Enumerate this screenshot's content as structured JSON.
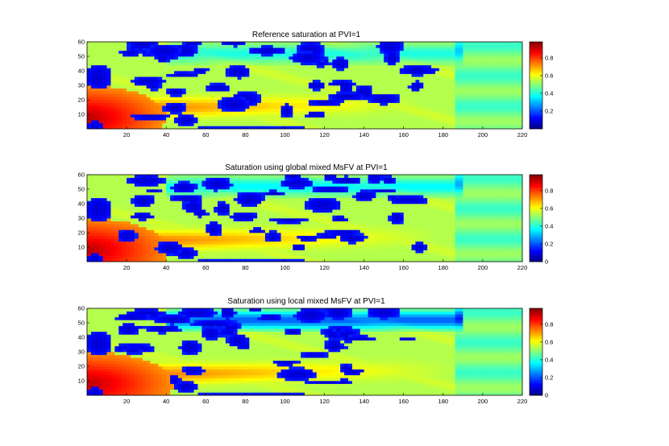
{
  "chart_data": [
    {
      "type": "heatmap",
      "title": "Reference saturation at PVI=1",
      "xlim": [
        0,
        220
      ],
      "ylim": [
        0,
        60
      ],
      "x_ticks": [
        20,
        40,
        60,
        80,
        100,
        120,
        140,
        160,
        180,
        200,
        220
      ],
      "y_ticks": [
        10,
        20,
        30,
        40,
        50,
        60
      ],
      "colorbar": {
        "range": [
          0,
          0.98
        ],
        "ticks": [
          0.2,
          0.4,
          0.6,
          0.8
        ],
        "tick_labels": [
          "0.2",
          "0.4",
          "0.6",
          "0.8"
        ],
        "colormap": "jet"
      },
      "field": {
        "plume_reach": 1.0,
        "upper_low_band": 0.25,
        "seed": 1
      }
    },
    {
      "type": "heatmap",
      "title": "Saturation using global mixed MsFV at PVI=1",
      "xlim": [
        0,
        220
      ],
      "ylim": [
        0,
        60
      ],
      "x_ticks": [
        20,
        40,
        60,
        80,
        100,
        120,
        140,
        160,
        180,
        200,
        220
      ],
      "y_ticks": [
        10,
        20,
        30,
        40,
        50,
        60
      ],
      "colorbar": {
        "range": [
          0,
          0.98
        ],
        "ticks": [
          0,
          0.2,
          0.4,
          0.6,
          0.8
        ],
        "tick_labels": [
          "0",
          "0.2",
          "0.4",
          "0.6",
          "0.8"
        ],
        "colormap": "jet"
      },
      "field": {
        "plume_reach": 1.05,
        "upper_low_band": 0.3,
        "seed": 2
      }
    },
    {
      "type": "heatmap",
      "title": "Saturation using local mixed MsFV at PVI=1",
      "xlim": [
        0,
        220
      ],
      "ylim": [
        0,
        60
      ],
      "x_ticks": [
        20,
        40,
        60,
        80,
        100,
        120,
        140,
        160,
        180,
        200,
        220
      ],
      "y_ticks": [
        10,
        20,
        30,
        40,
        50,
        60
      ],
      "colorbar": {
        "range": [
          0,
          0.98
        ],
        "ticks": [
          0,
          0.2,
          0.4,
          0.6,
          0.8
        ],
        "tick_labels": [
          "0",
          "0.2",
          "0.4",
          "0.6",
          "0.8"
        ],
        "colormap": "jet"
      },
      "field": {
        "plume_reach": 1.1,
        "upper_low_band": 0.55,
        "seed": 3
      }
    }
  ]
}
